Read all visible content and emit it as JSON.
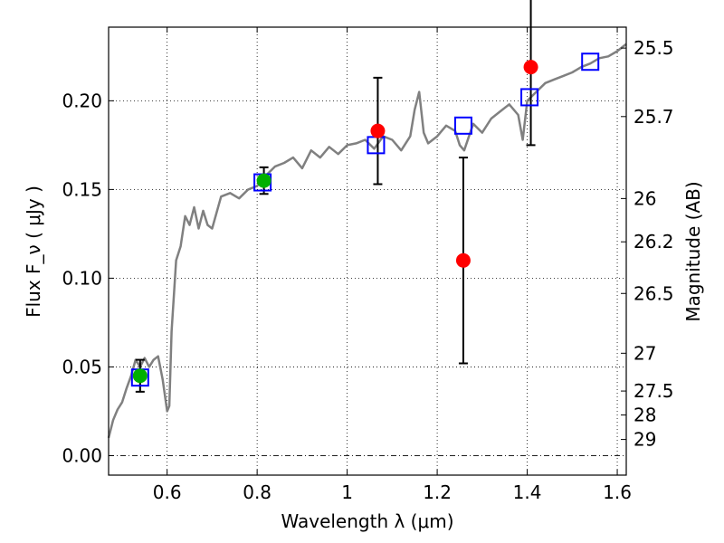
{
  "chart_data": {
    "type": "scatter",
    "xlabel": "Wavelength  λ (μm)",
    "ylabel": "Flux  F_ν  ( μJy )",
    "ylabel_right": "Magnitude (AB)",
    "xlim": [
      0.47,
      1.62
    ],
    "ylim": [
      -0.011,
      0.2415
    ],
    "grid": true,
    "zero_line": true,
    "x_ticks": [
      0.6,
      0.8,
      1.0,
      1.2,
      1.4,
      1.6
    ],
    "x_tick_labels": [
      "0.6",
      "0.8",
      "1",
      "1.2",
      "1.4",
      "1.6"
    ],
    "y_ticks": [
      0.0,
      0.05,
      0.1,
      0.15,
      0.2
    ],
    "y_tick_labels": [
      "0.00",
      "0.05",
      "0.10",
      "0.15",
      "0.20"
    ],
    "right_ticks": [
      {
        "label": "25.5",
        "flux": 0.2297
      },
      {
        "label": "25.7",
        "flux": 0.1911
      },
      {
        "label": "26",
        "flux": 0.1449
      },
      {
        "label": "26.2",
        "flux": 0.1205
      },
      {
        "label": "26.5",
        "flux": 0.0914
      },
      {
        "label": "27",
        "flux": 0.0577
      },
      {
        "label": "27.5",
        "flux": 0.0364
      },
      {
        "label": "28",
        "flux": 0.0229
      },
      {
        "label": "29",
        "flux": 0.0091
      }
    ],
    "colors": {
      "sed": "#808080",
      "green_points": "#00b000",
      "red_points": "#ff0000",
      "model_boxes": "#0000ff",
      "error_bars": "#000000",
      "grid": "#000000"
    },
    "series": [
      {
        "name": "model SED",
        "style": "line",
        "x": [
          0.47,
          0.48,
          0.49,
          0.5,
          0.51,
          0.52,
          0.53,
          0.54,
          0.55,
          0.56,
          0.57,
          0.58,
          0.59,
          0.6,
          0.605,
          0.61,
          0.62,
          0.63,
          0.64,
          0.65,
          0.66,
          0.67,
          0.68,
          0.69,
          0.7,
          0.72,
          0.74,
          0.76,
          0.78,
          0.8,
          0.82,
          0.84,
          0.86,
          0.88,
          0.9,
          0.92,
          0.94,
          0.96,
          0.98,
          1.0,
          1.02,
          1.04,
          1.06,
          1.08,
          1.1,
          1.12,
          1.14,
          1.15,
          1.16,
          1.17,
          1.18,
          1.2,
          1.22,
          1.24,
          1.25,
          1.26,
          1.28,
          1.3,
          1.32,
          1.34,
          1.36,
          1.38,
          1.39,
          1.4,
          1.42,
          1.44,
          1.46,
          1.48,
          1.5,
          1.52,
          1.54,
          1.56,
          1.58,
          1.6,
          1.62
        ],
        "values": [
          0.01,
          0.02,
          0.026,
          0.03,
          0.038,
          0.045,
          0.054,
          0.05,
          0.055,
          0.05,
          0.054,
          0.056,
          0.043,
          0.025,
          0.028,
          0.07,
          0.11,
          0.118,
          0.135,
          0.13,
          0.14,
          0.128,
          0.138,
          0.13,
          0.128,
          0.146,
          0.148,
          0.145,
          0.15,
          0.152,
          0.158,
          0.163,
          0.165,
          0.168,
          0.162,
          0.172,
          0.168,
          0.174,
          0.17,
          0.175,
          0.176,
          0.178,
          0.173,
          0.18,
          0.178,
          0.172,
          0.18,
          0.195,
          0.205,
          0.182,
          0.176,
          0.18,
          0.186,
          0.183,
          0.175,
          0.172,
          0.187,
          0.182,
          0.19,
          0.194,
          0.198,
          0.192,
          0.178,
          0.2,
          0.205,
          0.21,
          0.212,
          0.214,
          0.216,
          0.219,
          0.221,
          0.224,
          0.225,
          0.228,
          0.232
        ]
      },
      {
        "name": "green photometry",
        "style": "points",
        "points": [
          {
            "x": 0.54,
            "y": 0.045,
            "err": 0.009
          },
          {
            "x": 0.815,
            "y": 0.155,
            "err": 0.0075
          }
        ]
      },
      {
        "name": "red photometry",
        "style": "points",
        "points": [
          {
            "x": 1.068,
            "y": 0.183,
            "err": 0.03
          },
          {
            "x": 1.258,
            "y": 0.11,
            "err": 0.058
          },
          {
            "x": 1.408,
            "y": 0.219,
            "err": 0.044
          }
        ]
      },
      {
        "name": "model band fluxes",
        "style": "squares",
        "points": [
          {
            "x": 0.54,
            "y": 0.044
          },
          {
            "x": 0.812,
            "y": 0.154
          },
          {
            "x": 1.064,
            "y": 0.175
          },
          {
            "x": 1.258,
            "y": 0.186
          },
          {
            "x": 1.405,
            "y": 0.202
          },
          {
            "x": 1.54,
            "y": 0.222
          }
        ]
      }
    ]
  }
}
